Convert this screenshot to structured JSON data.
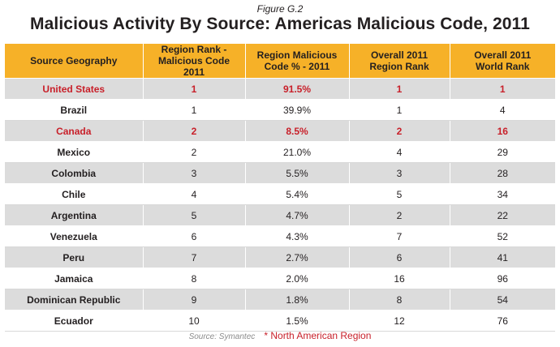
{
  "figure_label": "Figure G.2",
  "title": "Malicious Activity By Source: Americas Malicious Code, 2011",
  "table": {
    "headers": [
      "Source Geography",
      "Region Rank -\nMalicious Code 2011",
      "Region Malicious\nCode % - 2011",
      "Overall 2011\nRegion Rank",
      "Overall 2011\nWorld Rank"
    ],
    "rows": [
      {
        "cells": [
          "United States",
          "1",
          "91.5%",
          "1",
          "1"
        ],
        "highlight": true
      },
      {
        "cells": [
          "Brazil",
          "1",
          "39.9%",
          "1",
          "4"
        ],
        "highlight": false
      },
      {
        "cells": [
          "Canada",
          "2",
          "8.5%",
          "2",
          "16"
        ],
        "highlight": true
      },
      {
        "cells": [
          "Mexico",
          "2",
          "21.0%",
          "4",
          "29"
        ],
        "highlight": false
      },
      {
        "cells": [
          "Colombia",
          "3",
          "5.5%",
          "3",
          "28"
        ],
        "highlight": false
      },
      {
        "cells": [
          "Chile",
          "4",
          "5.4%",
          "5",
          "34"
        ],
        "highlight": false
      },
      {
        "cells": [
          "Argentina",
          "5",
          "4.7%",
          "2",
          "22"
        ],
        "highlight": false
      },
      {
        "cells": [
          "Venezuela",
          "6",
          "4.3%",
          "7",
          "52"
        ],
        "highlight": false
      },
      {
        "cells": [
          "Peru",
          "7",
          "2.7%",
          "6",
          "41"
        ],
        "highlight": false
      },
      {
        "cells": [
          "Jamaica",
          "8",
          "2.0%",
          "16",
          "96"
        ],
        "highlight": false
      },
      {
        "cells": [
          "Dominican Republic",
          "9",
          "1.8%",
          "8",
          "54"
        ],
        "highlight": false
      },
      {
        "cells": [
          "Ecuador",
          "10",
          "1.5%",
          "12",
          "76"
        ],
        "highlight": false
      }
    ]
  },
  "footer": {
    "source": "Source: Symantec",
    "note": "* North American Region"
  },
  "colors": {
    "header_bg": "#f6b128",
    "highlight_text": "#c8202a",
    "stripe_bg": "#dcdcdc"
  }
}
